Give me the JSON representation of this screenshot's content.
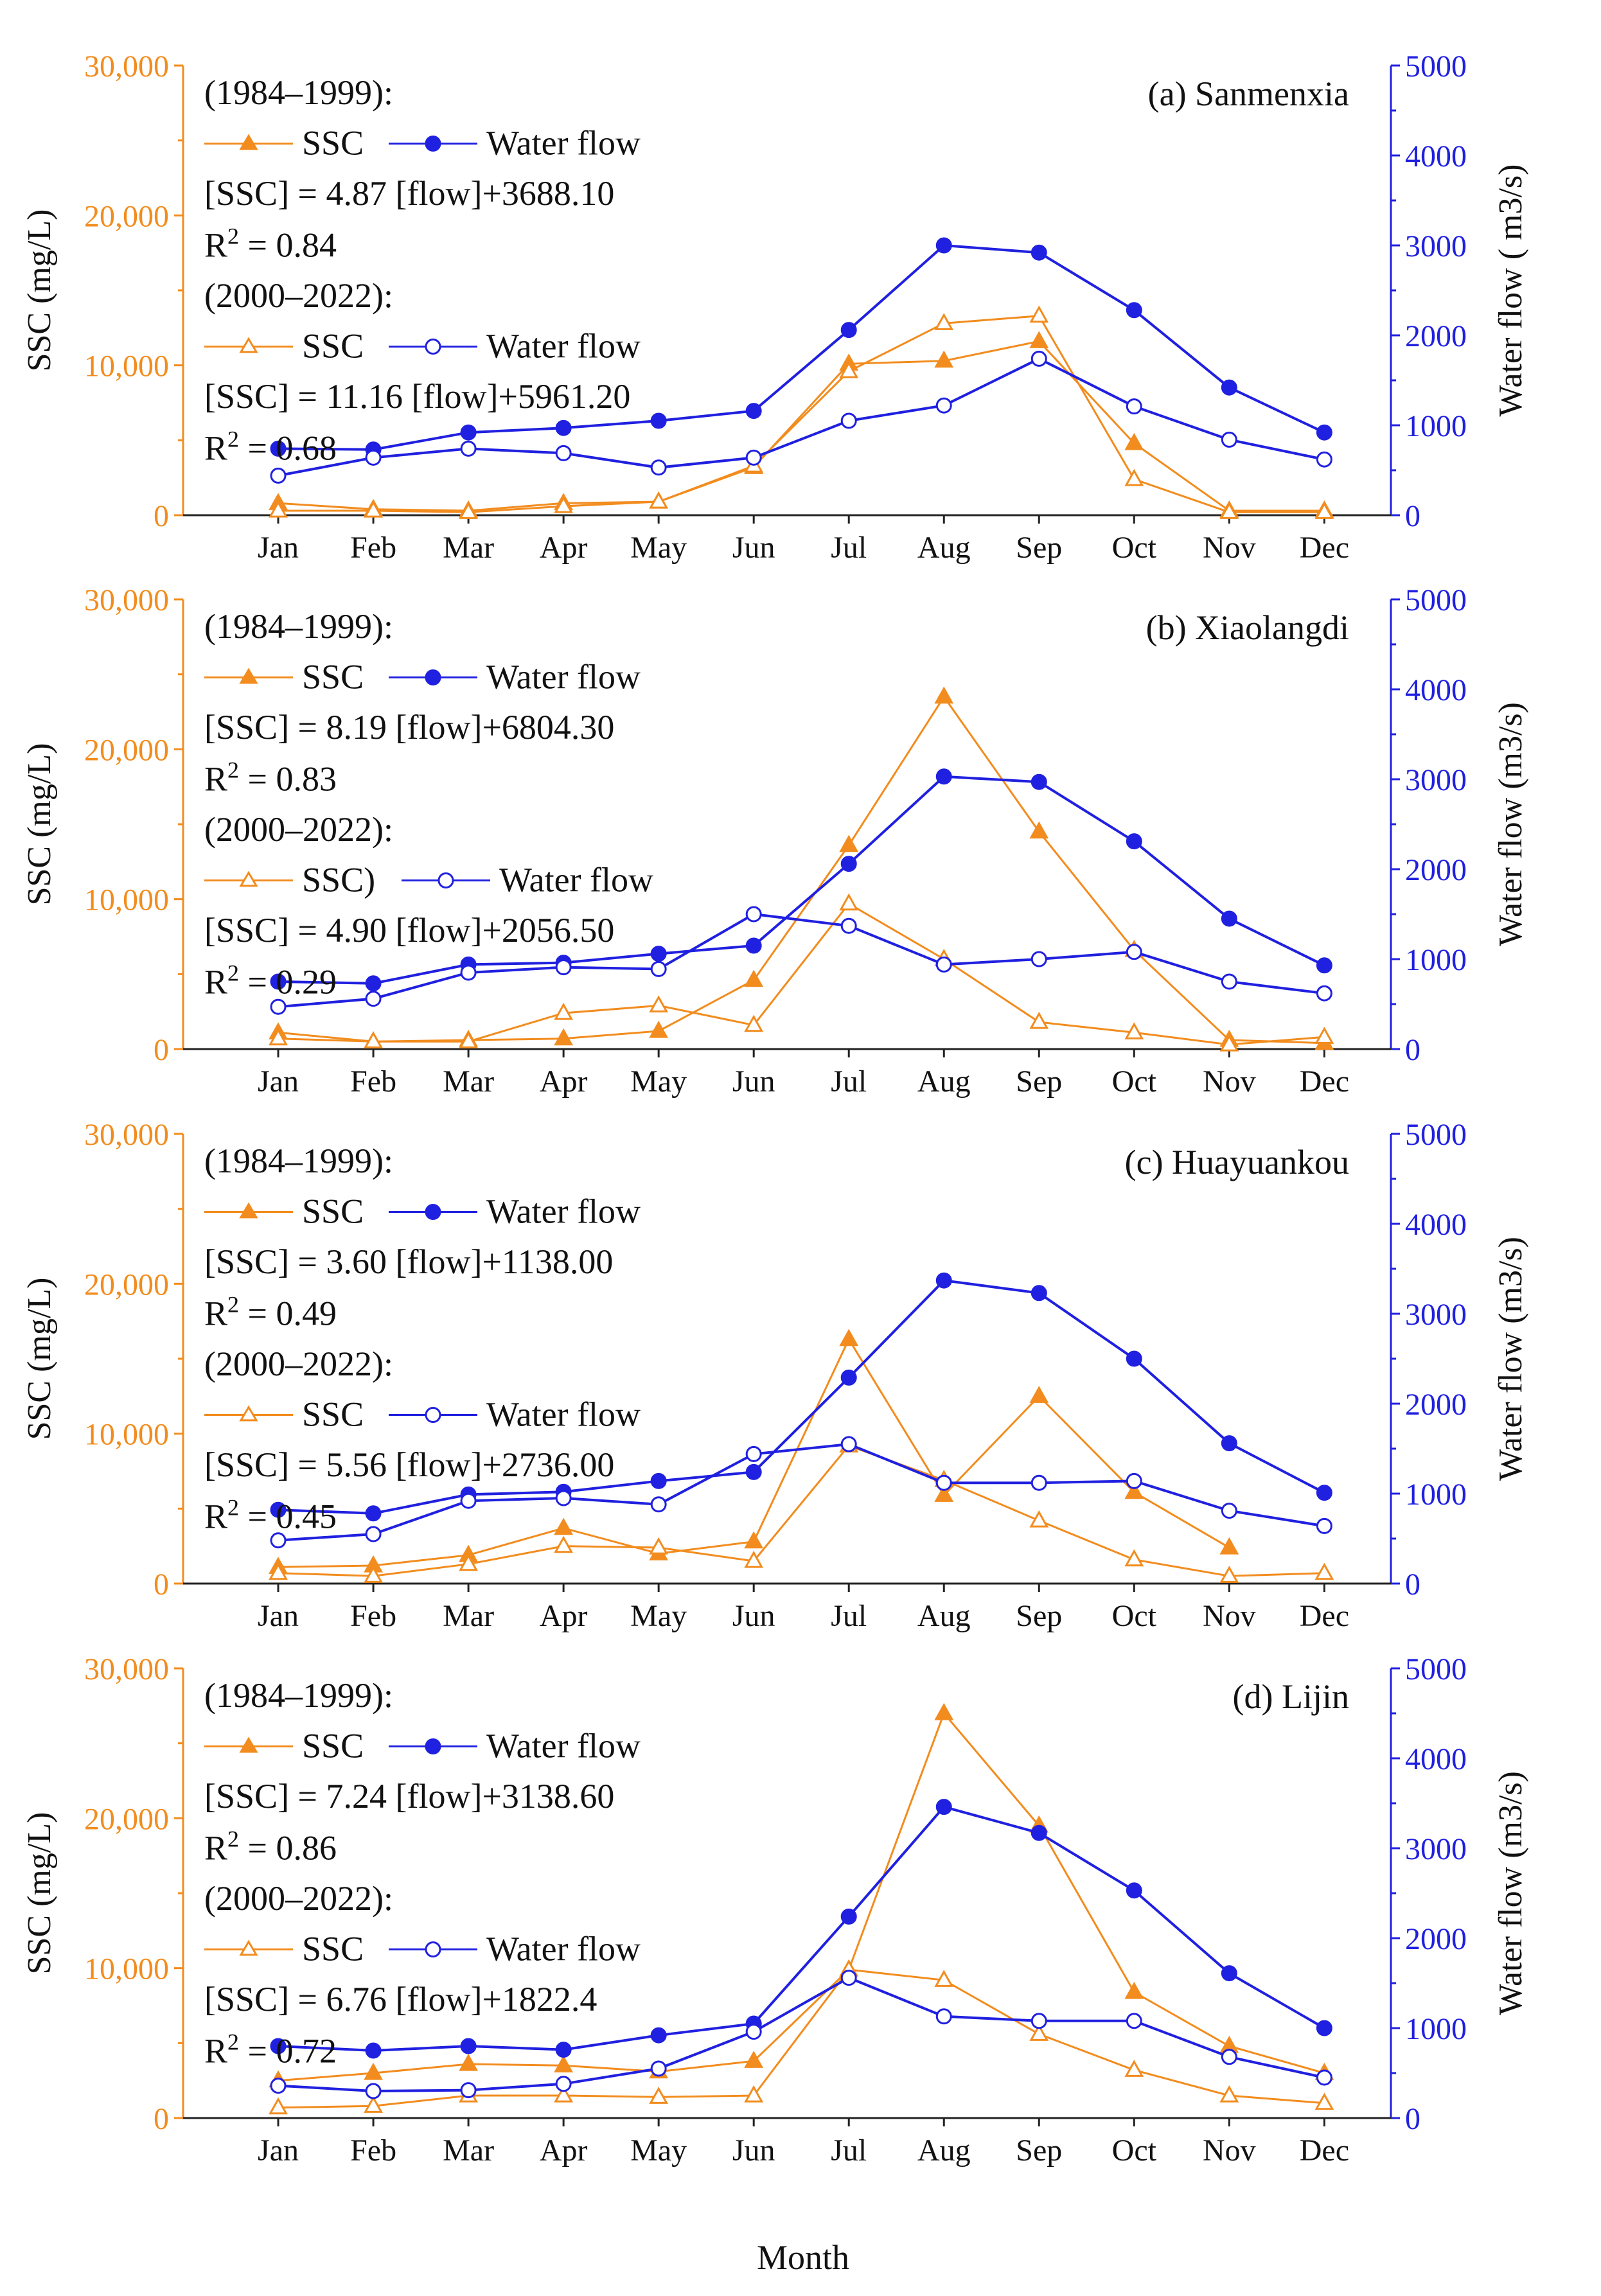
{
  "figure": {
    "x_label": "Month",
    "colors": {
      "ssc": "#f28c1e",
      "flow": "#2020e0"
    }
  },
  "chart_data": [
    {
      "type": "line",
      "panel_title": "(a) Sanmenxia",
      "categories": [
        "Jan",
        "Feb",
        "Mar",
        "Apr",
        "May",
        "Jun",
        "Jul",
        "Aug",
        "Sep",
        "Oct",
        "Nov",
        "Dec"
      ],
      "xlabel": "Month",
      "ylabel_left": "SSC (mg/L)",
      "ylabel_right": "Water flow ( m3/s)",
      "ylim_left": [
        0,
        30000
      ],
      "ylim_right": [
        0,
        5000
      ],
      "yticks_left": [
        "0",
        "10,000",
        "20,000",
        "30,000"
      ],
      "yticks_right": [
        "0",
        "1000",
        "2000",
        "3000",
        "4000",
        "5000"
      ],
      "legend": {
        "period1": "(1984–1999):",
        "ssc_label1": "SSC",
        "flow_label1": "Water flow",
        "eq1": "[SSC] = 4.87 [flow]+3688.10",
        "r2_prefix1": "R",
        "r2_sup1": "2",
        "r2_val1": " = 0.84",
        "period2": "(2000–2022):",
        "ssc_label2": "SSC",
        "flow_label2": "Water flow",
        "eq2": "[SSC] = 11.16 [flow]+5961.20",
        "r2_prefix2": "R",
        "r2_sup2": "2",
        "r2_val2": " = 0.68"
      },
      "series": [
        {
          "name": "SSC (1984–1999)",
          "axis": "left",
          "marker": "filled-triangle",
          "values": [
            800,
            400,
            300,
            800,
            900,
            3200,
            10100,
            10300,
            11600,
            4800,
            300,
            300
          ]
        },
        {
          "name": "SSC (2000–2022)",
          "axis": "left",
          "marker": "hollow-triangle",
          "values": [
            300,
            300,
            200,
            600,
            900,
            3300,
            9600,
            12800,
            13300,
            2400,
            200,
            200
          ]
        },
        {
          "name": "Water flow (1984–1999)",
          "axis": "right",
          "marker": "filled-circle",
          "values": [
            740,
            730,
            920,
            970,
            1050,
            1160,
            2060,
            3000,
            2920,
            2280,
            1420,
            920
          ]
        },
        {
          "name": "Water flow (2000–2022)",
          "axis": "right",
          "marker": "hollow-circle",
          "values": [
            440,
            640,
            740,
            690,
            530,
            640,
            1050,
            1220,
            1740,
            1210,
            840,
            620
          ]
        }
      ]
    },
    {
      "type": "line",
      "panel_title": "(b) Xiaolangdi",
      "categories": [
        "Jan",
        "Feb",
        "Mar",
        "Apr",
        "May",
        "Jun",
        "Jul",
        "Aug",
        "Sep",
        "Oct",
        "Nov",
        "Dec"
      ],
      "xlabel": "Month",
      "ylabel_left": "SSC (mg/L)",
      "ylabel_right": "Water flow (m3/s)",
      "ylim_left": [
        0,
        30000
      ],
      "ylim_right": [
        0,
        5000
      ],
      "yticks_left": [
        "0",
        "10,000",
        "20,000",
        "30,000"
      ],
      "yticks_right": [
        "0",
        "1000",
        "2000",
        "3000",
        "4000",
        "5000"
      ],
      "legend": {
        "period1": "(1984–1999):",
        "ssc_label1": "SSC",
        "flow_label1": "Water flow",
        "eq1": "[SSC] = 8.19 [flow]+6804.30",
        "r2_prefix1": "R",
        "r2_sup1": "2",
        "r2_val1": " = 0.83",
        "period2": "(2000–2022):",
        "ssc_label2": "SSC)",
        "flow_label2": "Water flow",
        "eq2": "[SSC] = 4.90 [flow]+2056.50",
        "r2_prefix2": "R",
        "r2_sup2": "2",
        "r2_val2": " = 0.29"
      },
      "series": [
        {
          "name": "SSC (1984–1999)",
          "axis": "left",
          "marker": "filled-triangle",
          "values": [
            1100,
            500,
            600,
            700,
            1200,
            4600,
            13600,
            23500,
            14500,
            6600,
            600,
            400
          ]
        },
        {
          "name": "SSC (2000–2022)",
          "axis": "left",
          "marker": "hollow-triangle",
          "values": [
            700,
            500,
            500,
            2400,
            2900,
            1600,
            9700,
            6000,
            1800,
            1100,
            300,
            800
          ]
        },
        {
          "name": "Water flow (1984–1999)",
          "axis": "right",
          "marker": "filled-circle",
          "values": [
            750,
            730,
            940,
            960,
            1060,
            1150,
            2060,
            3030,
            2970,
            2310,
            1450,
            930
          ]
        },
        {
          "name": "Water flow (2000–2022)",
          "axis": "right",
          "marker": "hollow-circle",
          "values": [
            470,
            560,
            850,
            910,
            890,
            1500,
            1370,
            940,
            1000,
            1080,
            750,
            620
          ]
        }
      ]
    },
    {
      "type": "line",
      "panel_title": "(c) Huayuankou",
      "categories": [
        "Jan",
        "Feb",
        "Mar",
        "Apr",
        "May",
        "Jun",
        "Jul",
        "Aug",
        "Sep",
        "Oct",
        "Nov",
        "Dec"
      ],
      "xlabel": "Month",
      "ylabel_left": "SSC (mg/L)",
      "ylabel_right": "Water flow (m3/s)",
      "ylim_left": [
        0,
        30000
      ],
      "ylim_right": [
        0,
        5000
      ],
      "yticks_left": [
        "0",
        "10,000",
        "20,000",
        "30,000"
      ],
      "yticks_right": [
        "0",
        "1000",
        "2000",
        "3000",
        "4000",
        "5000"
      ],
      "legend": {
        "period1": "(1984–1999):",
        "ssc_label1": "SSC",
        "flow_label1": "Water flow",
        "eq1": "[SSC] = 3.60 [flow]+1138.00",
        "r2_prefix1": "R",
        "r2_sup1": "2",
        "r2_val1": " = 0.49",
        "period2": "(2000–2022):",
        "ssc_label2": "SSC",
        "flow_label2": "Water flow",
        "eq2": "[SSC] = 5.56 [flow]+2736.00",
        "r2_prefix2": "R",
        "r2_sup2": "2",
        "r2_val2": " = 0.45"
      },
      "series": [
        {
          "name": "SSC (1984–1999)",
          "axis": "left",
          "marker": "filled-triangle",
          "values": [
            1100,
            1200,
            1900,
            3700,
            2000,
            2800,
            16300,
            5900,
            12500,
            6100,
            2400,
            null
          ]
        },
        {
          "name": "SSC (2000–2022)",
          "axis": "left",
          "marker": "hollow-triangle",
          "values": [
            700,
            500,
            1300,
            2500,
            2400,
            1500,
            9200,
            6900,
            4200,
            1600,
            500,
            700
          ]
        },
        {
          "name": "Water flow (1984–1999)",
          "axis": "right",
          "marker": "filled-circle",
          "values": [
            820,
            780,
            990,
            1020,
            1140,
            1240,
            2290,
            3370,
            3230,
            2500,
            1560,
            1010
          ]
        },
        {
          "name": "Water flow (2000–2022)",
          "axis": "right",
          "marker": "hollow-circle",
          "values": [
            480,
            550,
            920,
            950,
            880,
            1440,
            1550,
            1120,
            1120,
            1140,
            810,
            640
          ]
        }
      ]
    },
    {
      "type": "line",
      "panel_title": "(d) Lijin",
      "categories": [
        "Jan",
        "Feb",
        "Mar",
        "Apr",
        "May",
        "Jun",
        "Jul",
        "Aug",
        "Sep",
        "Oct",
        "Nov",
        "Dec"
      ],
      "xlabel": "Month",
      "ylabel_left": "SSC (mg/L)",
      "ylabel_right": "Water flow (m3/s)",
      "ylim_left": [
        0,
        30000
      ],
      "ylim_right": [
        0,
        5000
      ],
      "yticks_left": [
        "0",
        "10,000",
        "20,000",
        "30,000"
      ],
      "yticks_right": [
        "0",
        "1000",
        "2000",
        "3000",
        "4000",
        "5000"
      ],
      "legend": {
        "period1": "(1984–1999):",
        "ssc_label1": "SSC",
        "flow_label1": "Water flow",
        "eq1": "[SSC] = 7.24 [flow]+3138.60",
        "r2_prefix1": "R",
        "r2_sup1": "2",
        "r2_val1": " = 0.86",
        "period2": "(2000–2022):",
        "ssc_label2": "SSC",
        "flow_label2": "Water flow",
        "eq2": "[SSC] = 6.76 [flow]+1822.4",
        "r2_prefix2": "R",
        "r2_sup2": "2",
        "r2_val2": " = 0.72"
      },
      "series": [
        {
          "name": "SSC (1984–1999)",
          "axis": "left",
          "marker": "filled-triangle",
          "values": [
            2500,
            3000,
            3600,
            3500,
            3100,
            3800,
            9900,
            27000,
            19500,
            8400,
            4800,
            3000
          ]
        },
        {
          "name": "SSC (2000–2022)",
          "axis": "left",
          "marker": "hollow-triangle",
          "values": [
            700,
            800,
            1500,
            1500,
            1400,
            1500,
            9900,
            9200,
            5600,
            3200,
            1500,
            1000
          ]
        },
        {
          "name": "Water flow (1984–1999)",
          "axis": "right",
          "marker": "filled-circle",
          "values": [
            800,
            750,
            800,
            760,
            920,
            1050,
            2240,
            3460,
            3170,
            2530,
            1610,
            1000
          ]
        },
        {
          "name": "Water flow (2000–2022)",
          "axis": "right",
          "marker": "hollow-circle",
          "values": [
            360,
            300,
            310,
            380,
            550,
            960,
            1560,
            1130,
            1080,
            1080,
            680,
            450
          ]
        }
      ]
    }
  ]
}
